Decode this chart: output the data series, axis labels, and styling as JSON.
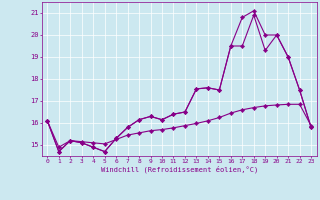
{
  "xlabel": "Windchill (Refroidissement éolien,°C)",
  "background_color": "#cce8f0",
  "line_color": "#880088",
  "xlim": [
    -0.5,
    23.5
  ],
  "ylim": [
    14.5,
    21.5
  ],
  "yticks": [
    15,
    16,
    17,
    18,
    19,
    20,
    21
  ],
  "xticks": [
    0,
    1,
    2,
    3,
    4,
    5,
    6,
    7,
    8,
    9,
    10,
    11,
    12,
    13,
    14,
    15,
    16,
    17,
    18,
    19,
    20,
    21,
    22,
    23
  ],
  "line1_x": [
    0,
    1,
    2,
    3,
    4,
    5,
    6,
    7,
    8,
    9,
    10,
    11,
    12,
    13,
    14,
    15,
    16,
    17,
    18,
    19,
    20,
    21,
    22,
    23
  ],
  "line1_y": [
    16.1,
    14.7,
    15.2,
    15.1,
    14.9,
    14.7,
    15.3,
    15.8,
    16.15,
    16.3,
    16.15,
    16.4,
    16.5,
    17.55,
    17.6,
    17.5,
    19.5,
    20.8,
    21.1,
    20.0,
    20.0,
    19.0,
    17.5,
    15.8
  ],
  "line2_x": [
    0,
    1,
    2,
    3,
    4,
    5,
    6,
    7,
    8,
    9,
    10,
    11,
    12,
    13,
    14,
    15,
    16,
    17,
    18,
    19,
    20,
    21,
    22,
    23
  ],
  "line2_y": [
    16.1,
    14.7,
    15.2,
    15.1,
    14.9,
    14.7,
    15.3,
    15.8,
    16.15,
    16.3,
    16.15,
    16.4,
    16.5,
    17.55,
    17.6,
    17.5,
    19.5,
    19.5,
    20.9,
    19.3,
    20.0,
    19.0,
    17.5,
    15.8
  ],
  "line3_x": [
    0,
    1,
    2,
    3,
    4,
    5,
    6,
    7,
    8,
    9,
    10,
    11,
    12,
    13,
    14,
    15,
    16,
    17,
    18,
    19,
    20,
    21,
    22,
    23
  ],
  "line3_y": [
    16.1,
    14.9,
    15.2,
    15.15,
    15.1,
    15.05,
    15.25,
    15.45,
    15.55,
    15.65,
    15.7,
    15.78,
    15.88,
    15.98,
    16.1,
    16.25,
    16.45,
    16.6,
    16.7,
    16.78,
    16.82,
    16.85,
    16.85,
    15.88
  ]
}
